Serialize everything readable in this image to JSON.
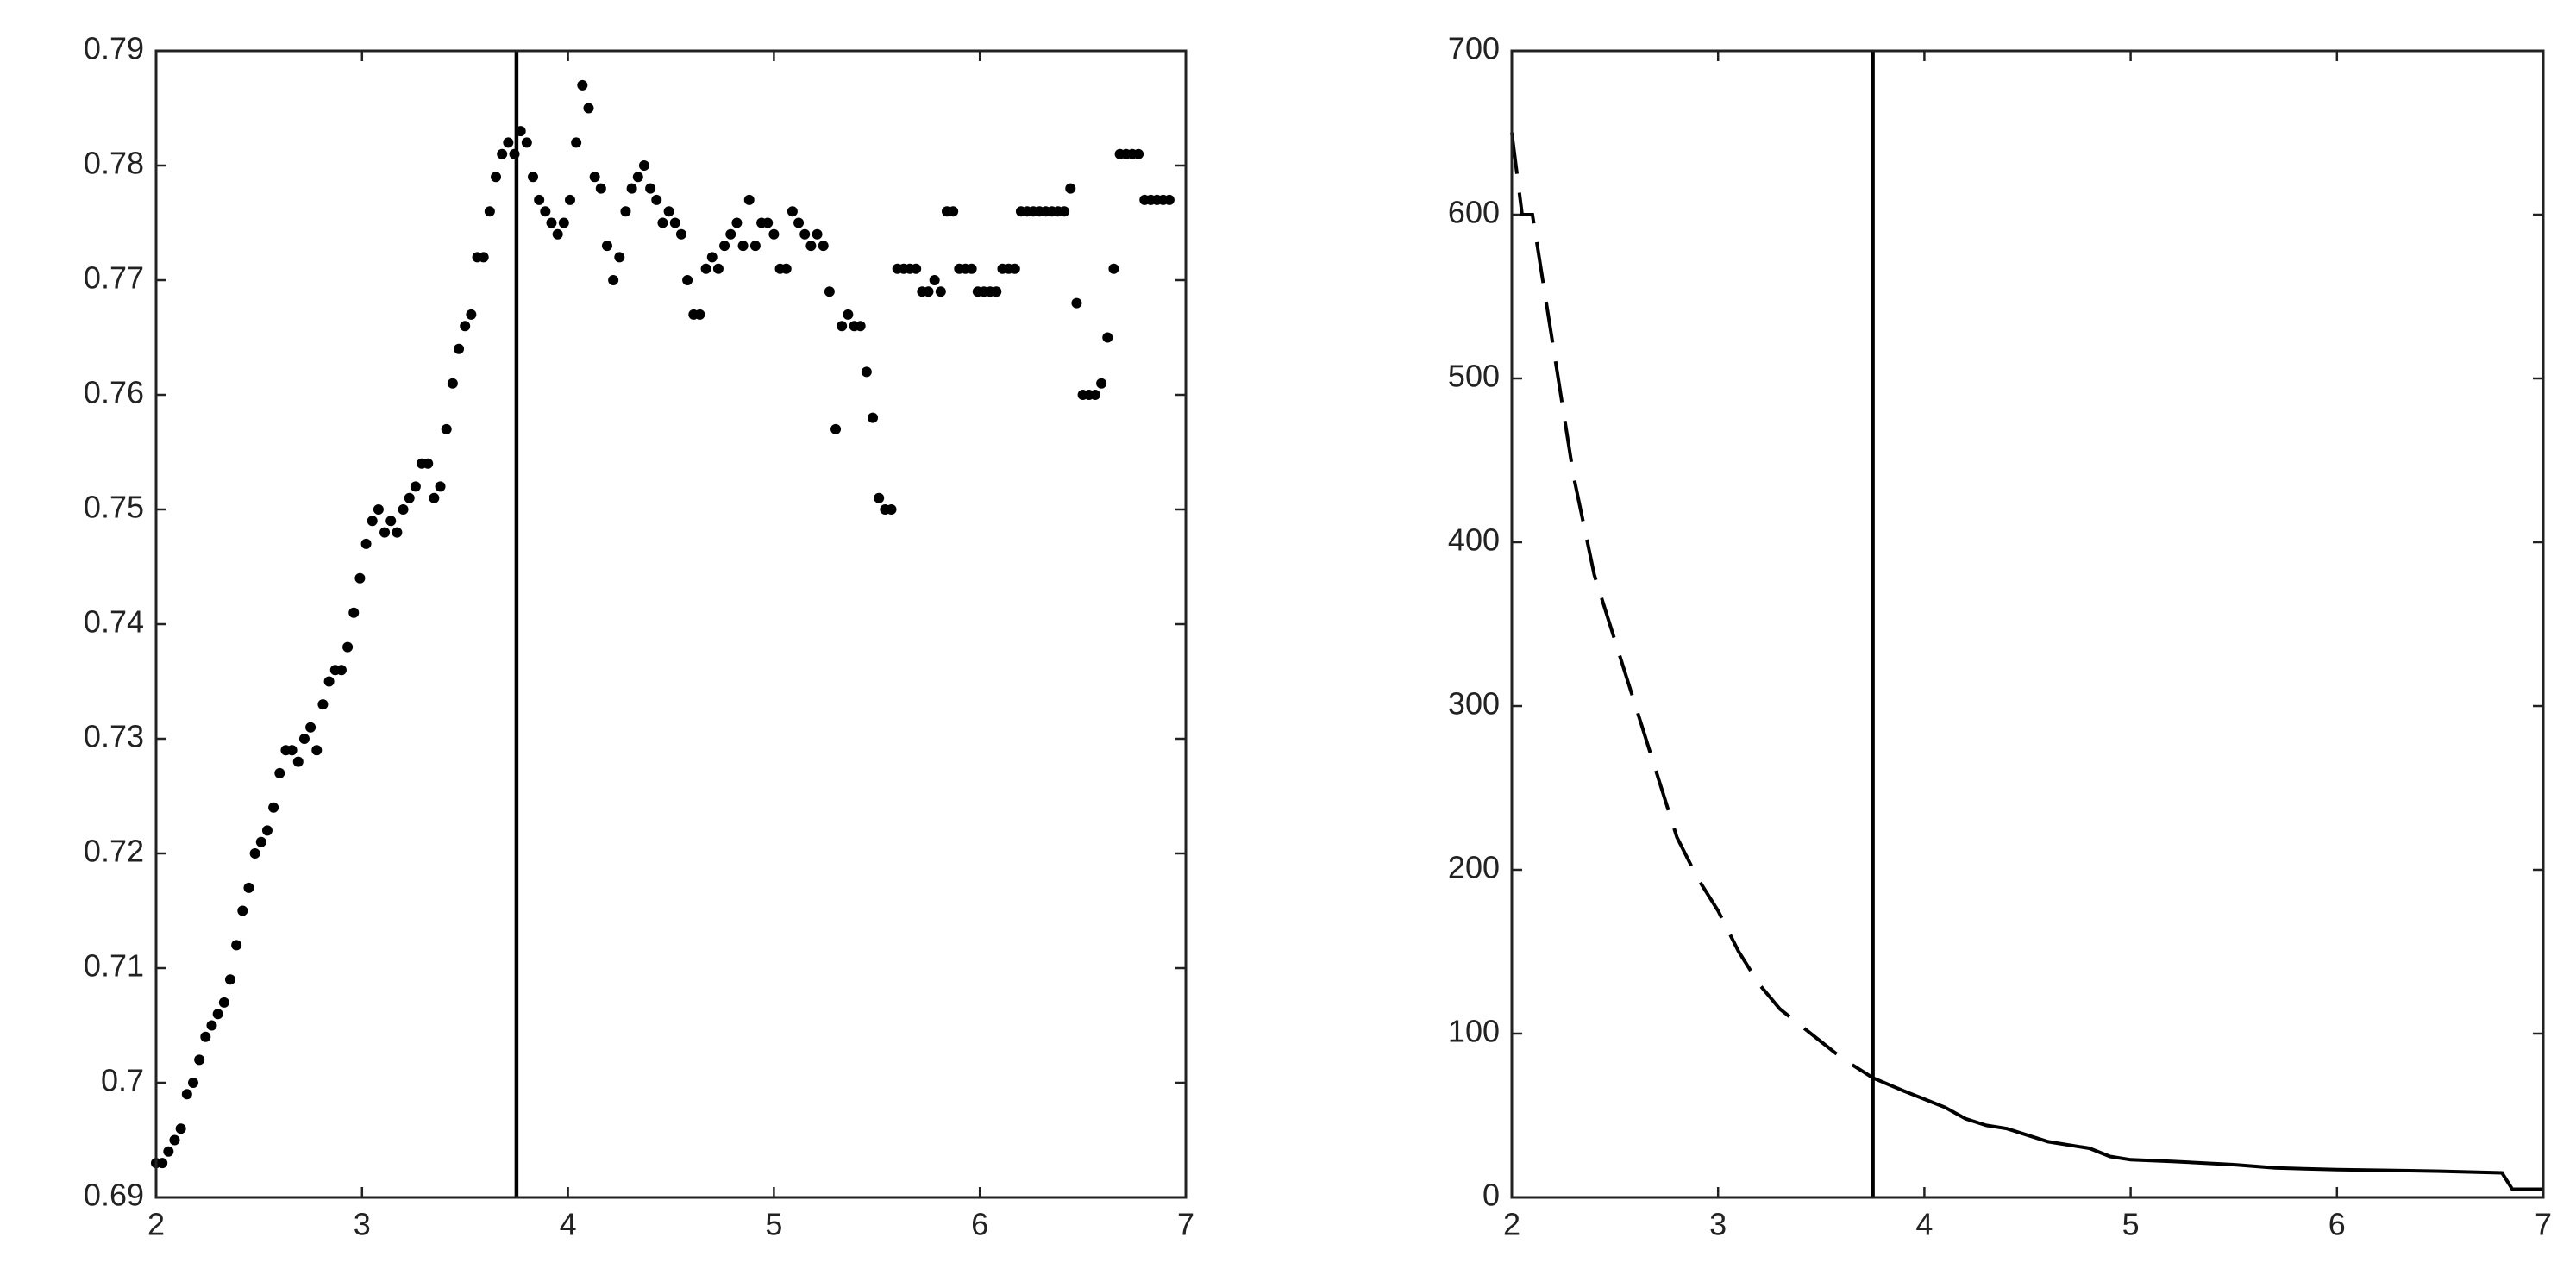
{
  "chart_data": [
    {
      "type": "scatter",
      "color": "#000000",
      "xlim": [
        2,
        7
      ],
      "xticks": [
        2,
        3,
        4,
        5,
        6,
        7
      ],
      "ylim": [
        0.69,
        0.79
      ],
      "yticks": [
        0.69,
        0.7,
        0.71,
        0.72,
        0.73,
        0.74,
        0.75,
        0.76,
        0.77,
        0.78,
        0.79
      ],
      "vline": 3.75,
      "x": [
        2.0,
        2.03,
        2.06,
        2.09,
        2.12,
        2.15,
        2.18,
        2.21,
        2.24,
        2.27,
        2.3,
        2.33,
        2.36,
        2.39,
        2.42,
        2.45,
        2.48,
        2.51,
        2.54,
        2.57,
        2.6,
        2.63,
        2.66,
        2.69,
        2.72,
        2.75,
        2.78,
        2.81,
        2.84,
        2.87,
        2.9,
        2.93,
        2.96,
        2.99,
        3.02,
        3.05,
        3.08,
        3.11,
        3.14,
        3.17,
        3.2,
        3.23,
        3.26,
        3.29,
        3.32,
        3.35,
        3.38,
        3.41,
        3.44,
        3.47,
        3.5,
        3.53,
        3.56,
        3.59,
        3.62,
        3.65,
        3.68,
        3.71,
        3.74,
        3.77,
        3.8,
        3.83,
        3.86,
        3.89,
        3.92,
        3.95,
        3.98,
        4.01,
        4.04,
        4.07,
        4.1,
        4.13,
        4.16,
        4.19,
        4.22,
        4.25,
        4.28,
        4.31,
        4.34,
        4.37,
        4.4,
        4.43,
        4.46,
        4.49,
        4.52,
        4.55,
        4.58,
        4.61,
        4.64,
        4.67,
        4.7,
        4.73,
        4.76,
        4.79,
        4.82,
        4.85,
        4.88,
        4.91,
        4.94,
        4.97,
        5.0,
        5.03,
        5.06,
        5.09,
        5.12,
        5.15,
        5.18,
        5.21,
        5.24,
        5.27,
        5.3,
        5.33,
        5.36,
        5.39,
        5.42,
        5.45,
        5.48,
        5.51,
        5.54,
        5.57,
        5.6,
        5.63,
        5.66,
        5.69,
        5.72,
        5.75,
        5.78,
        5.81,
        5.84,
        5.87,
        5.9,
        5.93,
        5.96,
        5.99,
        6.02,
        6.05,
        6.08,
        6.11,
        6.14,
        6.17,
        6.2,
        6.23,
        6.26,
        6.29,
        6.32,
        6.35,
        6.38,
        6.41,
        6.44,
        6.47,
        6.5,
        6.53,
        6.56,
        6.59,
        6.62,
        6.65,
        6.68,
        6.71,
        6.74,
        6.77,
        6.8,
        6.83,
        6.86,
        6.89,
        6.92
      ],
      "values": [
        0.693,
        0.693,
        0.694,
        0.695,
        0.696,
        0.699,
        0.7,
        0.702,
        0.704,
        0.705,
        0.706,
        0.707,
        0.709,
        0.712,
        0.715,
        0.717,
        0.72,
        0.721,
        0.722,
        0.724,
        0.727,
        0.729,
        0.729,
        0.728,
        0.73,
        0.731,
        0.729,
        0.733,
        0.735,
        0.736,
        0.736,
        0.738,
        0.741,
        0.744,
        0.747,
        0.749,
        0.75,
        0.748,
        0.749,
        0.748,
        0.75,
        0.751,
        0.752,
        0.754,
        0.754,
        0.751,
        0.752,
        0.757,
        0.761,
        0.764,
        0.766,
        0.767,
        0.772,
        0.772,
        0.776,
        0.779,
        0.781,
        0.782,
        0.781,
        0.783,
        0.782,
        0.779,
        0.777,
        0.776,
        0.775,
        0.774,
        0.775,
        0.777,
        0.782,
        0.787,
        0.785,
        0.779,
        0.778,
        0.773,
        0.77,
        0.772,
        0.776,
        0.778,
        0.779,
        0.78,
        0.778,
        0.777,
        0.775,
        0.776,
        0.775,
        0.774,
        0.77,
        0.767,
        0.767,
        0.771,
        0.772,
        0.771,
        0.773,
        0.774,
        0.775,
        0.773,
        0.777,
        0.773,
        0.775,
        0.775,
        0.774,
        0.771,
        0.771,
        0.776,
        0.775,
        0.774,
        0.773,
        0.774,
        0.773,
        0.769,
        0.757,
        0.766,
        0.767,
        0.766,
        0.766,
        0.762,
        0.758,
        0.751,
        0.75,
        0.75,
        0.771,
        0.771,
        0.771,
        0.771,
        0.769,
        0.769,
        0.77,
        0.769,
        0.776,
        0.776,
        0.771,
        0.771,
        0.771,
        0.769,
        0.769,
        0.769,
        0.769,
        0.771,
        0.771,
        0.771,
        0.776,
        0.776,
        0.776,
        0.776,
        0.776,
        0.776,
        0.776,
        0.776,
        0.778,
        0.768,
        0.76,
        0.76,
        0.76,
        0.761,
        0.765,
        0.771,
        0.781,
        0.781,
        0.781,
        0.781,
        0.777,
        0.777,
        0.777,
        0.777,
        0.777
      ]
    },
    {
      "type": "line",
      "xlim": [
        2,
        7
      ],
      "xticks": [
        2,
        3,
        4,
        5,
        6,
        7
      ],
      "ylim": [
        0,
        700
      ],
      "yticks": [
        0,
        100,
        200,
        300,
        400,
        500,
        600,
        700
      ],
      "vline": 3.75,
      "series": [
        {
          "color": "#000000",
          "dashed": true,
          "x": [
            2.0,
            2.05,
            2.1,
            2.2,
            2.3,
            2.4,
            2.5,
            2.6,
            2.7,
            2.8,
            2.9,
            3.0,
            3.1,
            3.2,
            3.3,
            3.4,
            3.5,
            3.6,
            3.75
          ],
          "values": [
            650,
            600,
            600,
            520,
            440,
            380,
            340,
            300,
            260,
            220,
            195,
            175,
            150,
            130,
            115,
            105,
            95,
            85,
            73
          ]
        },
        {
          "color": "#000000",
          "dashed": false,
          "x": [
            3.75,
            3.9,
            4.0,
            4.1,
            4.2,
            4.3,
            4.4,
            4.5,
            4.6,
            4.8,
            4.9,
            5.0,
            5.2,
            5.5,
            5.7,
            6.0,
            6.5,
            6.8,
            6.85,
            7.0
          ],
          "values": [
            73,
            65,
            60,
            55,
            48,
            44,
            42,
            38,
            34,
            30,
            25,
            23,
            22,
            20,
            18,
            17,
            16,
            15,
            5,
            5
          ]
        }
      ]
    }
  ]
}
